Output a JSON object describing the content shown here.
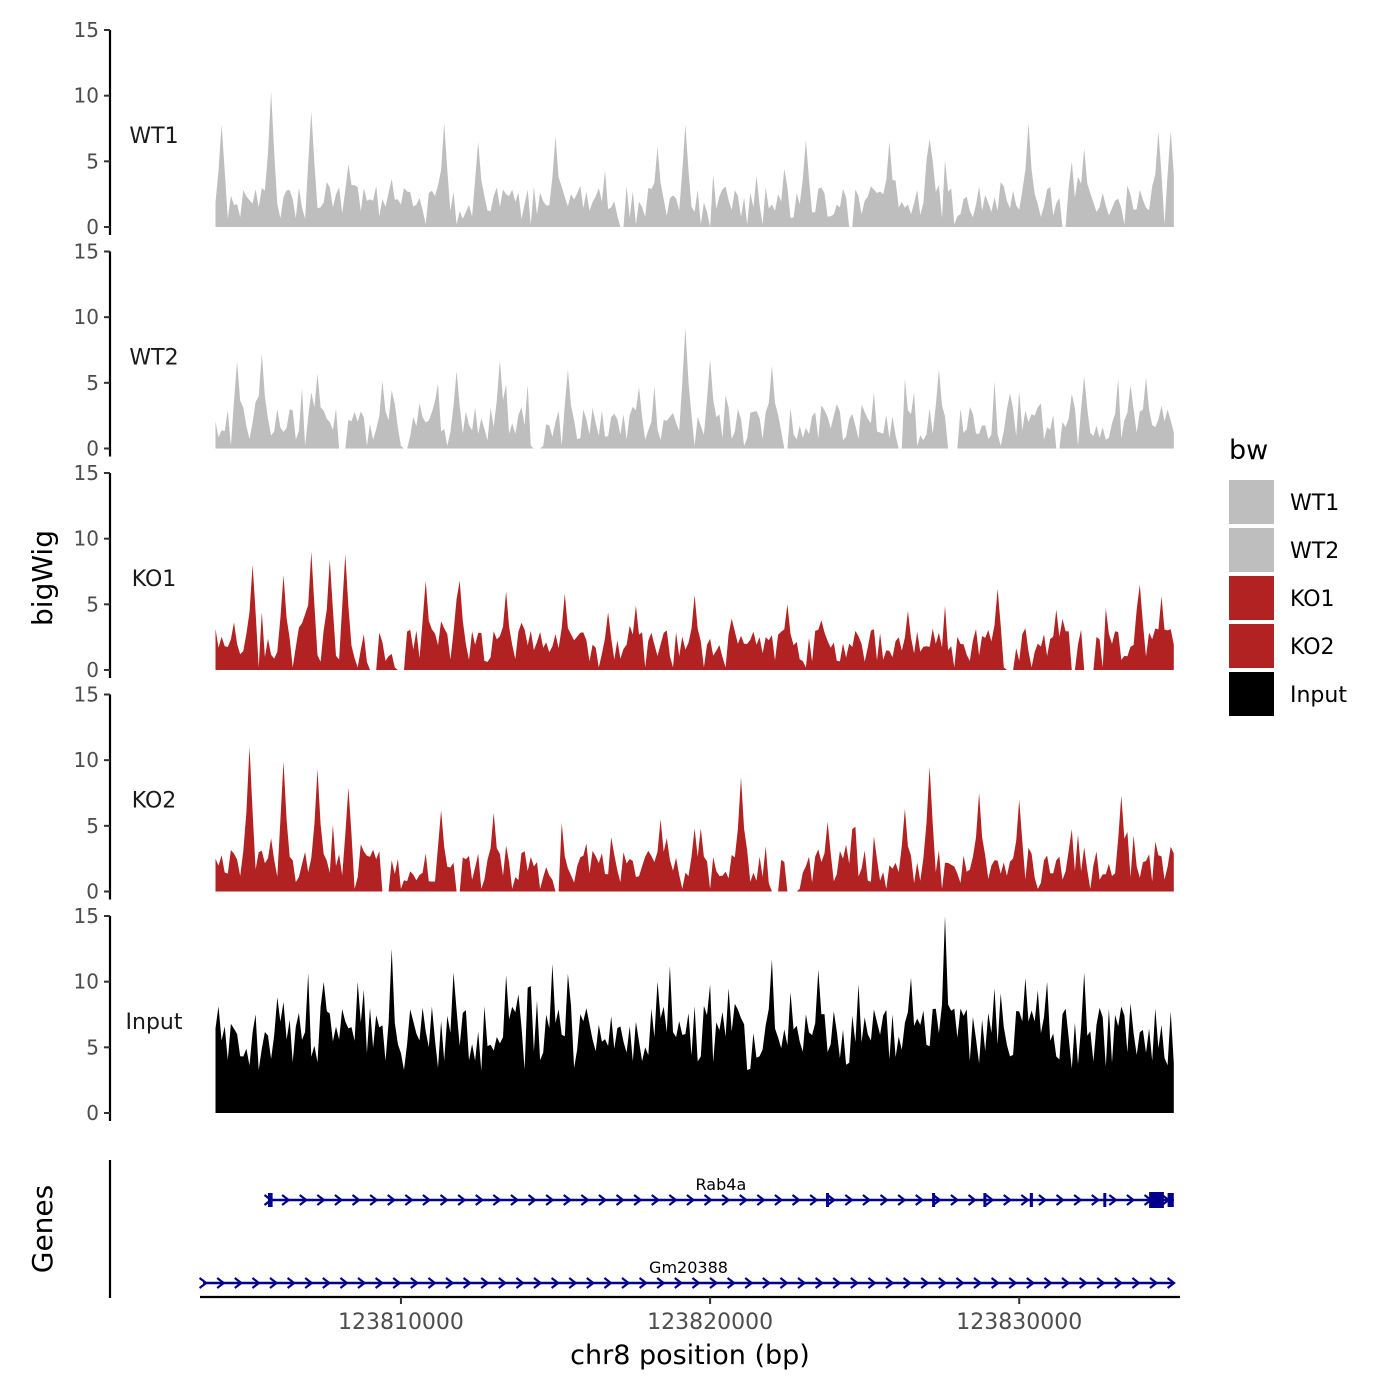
{
  "chart_data": {
    "type": "area",
    "ylabel": "bigWig",
    "genes_label": "Genes",
    "xlabel": "chr8 position (bp)",
    "xlim": [
      123803500,
      123835200
    ],
    "x_range": [
      123804000,
      123835000
    ],
    "xticks": [
      {
        "value": 123810000,
        "label": "123810000"
      },
      {
        "value": 123820000,
        "label": "123820000"
      },
      {
        "value": 123830000,
        "label": "123830000"
      }
    ],
    "ylim": [
      0,
      15
    ],
    "yticks": [
      {
        "value": 0,
        "label": "0"
      },
      {
        "value": 5,
        "label": "5"
      },
      {
        "value": 10,
        "label": "10"
      },
      {
        "value": 15,
        "label": "15"
      }
    ],
    "legend": {
      "title": "bw",
      "position": "right",
      "entries": [
        {
          "label": "WT1",
          "color": "#bebebe"
        },
        {
          "label": "WT2",
          "color": "#bebebe"
        },
        {
          "label": "KO1",
          "color": "#b22222"
        },
        {
          "label": "KO2",
          "color": "#b22222"
        },
        {
          "label": "Input",
          "color": "#000000"
        }
      ]
    },
    "series": [
      {
        "name": "WT1",
        "color": "#bebebe",
        "bin_bp": 100,
        "peaks": [
          [
            123804200,
            7.8
          ],
          [
            123805800,
            10.3
          ],
          [
            123807100,
            8.8
          ],
          [
            123811400,
            7.9
          ],
          [
            123812500,
            6.5
          ],
          [
            123815000,
            6.9
          ],
          [
            123818300,
            6.1
          ],
          [
            123819200,
            7.8
          ],
          [
            123823100,
            6.6
          ],
          [
            123825800,
            6.5
          ],
          [
            123827100,
            6.7
          ],
          [
            123830300,
            7.9
          ],
          [
            123832100,
            6.0
          ],
          [
            123834500,
            7.3
          ],
          [
            123834900,
            7.3
          ]
        ],
        "gaps": [
          [
            123817100,
            123817200
          ],
          [
            123820000,
            123820000
          ],
          [
            123824500,
            123824600
          ],
          [
            123831400,
            123831500
          ]
        ]
      },
      {
        "name": "WT2",
        "color": "#bebebe",
        "bin_bp": 100,
        "peaks": [
          [
            123804700,
            6.6
          ],
          [
            123805500,
            7.2
          ],
          [
            123807300,
            5.7
          ],
          [
            123811800,
            5.9
          ],
          [
            123813200,
            6.7
          ],
          [
            123815400,
            6.0
          ],
          [
            123819200,
            9.2
          ],
          [
            123820000,
            6.8
          ],
          [
            123822000,
            6.3
          ],
          [
            123826300,
            5.3
          ],
          [
            123827400,
            6.0
          ],
          [
            123829700,
            4.2
          ],
          [
            123832100,
            5.5
          ],
          [
            123834100,
            5.4
          ]
        ],
        "gaps": [
          [
            123808000,
            123808200
          ],
          [
            123810100,
            123810200
          ],
          [
            123814300,
            123814500
          ],
          [
            123822400,
            123822500
          ],
          [
            123826100,
            123826200
          ],
          [
            123827700,
            123828000
          ],
          [
            123831200,
            123831300
          ]
        ]
      },
      {
        "name": "KO1",
        "color": "#b22222",
        "bin_bp": 100,
        "peaks": [
          [
            123805200,
            8.0
          ],
          [
            123806200,
            7.2
          ],
          [
            123807100,
            9.0
          ],
          [
            123807700,
            8.4
          ],
          [
            123808200,
            8.8
          ],
          [
            123810800,
            6.8
          ],
          [
            123811900,
            6.8
          ],
          [
            123813400,
            6.0
          ],
          [
            123815300,
            5.8
          ],
          [
            123816700,
            4.4
          ],
          [
            123817600,
            4.9
          ],
          [
            123819500,
            5.7
          ],
          [
            123822500,
            5.0
          ],
          [
            123826400,
            4.5
          ],
          [
            123829300,
            6.2
          ],
          [
            123831200,
            4.6
          ],
          [
            123833900,
            6.5
          ],
          [
            123834600,
            5.6
          ]
        ],
        "gaps": [
          [
            123809000,
            123809200
          ],
          [
            123809900,
            123810100
          ],
          [
            123829600,
            123829800
          ],
          [
            123831700,
            123831800
          ],
          [
            123832100,
            123832400
          ]
        ]
      },
      {
        "name": "KO2",
        "color": "#b22222",
        "bin_bp": 100,
        "peaks": [
          [
            123805100,
            11.0
          ],
          [
            123806200,
            9.9
          ],
          [
            123807300,
            9.3
          ],
          [
            123808300,
            7.9
          ],
          [
            123811300,
            6.2
          ],
          [
            123813000,
            6.0
          ],
          [
            123818400,
            5.5
          ],
          [
            123819500,
            4.8
          ],
          [
            123821000,
            8.7
          ],
          [
            123823800,
            5.3
          ],
          [
            123826300,
            6.3
          ],
          [
            123827100,
            9.5
          ],
          [
            123828700,
            7.5
          ],
          [
            123830000,
            7.0
          ],
          [
            123833300,
            7.3
          ],
          [
            123834900,
            3.4
          ]
        ],
        "gaps": [
          [
            123809400,
            123809600
          ],
          [
            123811800,
            123811900
          ],
          [
            123815000,
            123815100
          ],
          [
            123822000,
            123822200
          ],
          [
            123822500,
            123822800
          ]
        ]
      },
      {
        "name": "Input",
        "color": "#000000",
        "bin_bp": 100,
        "peaks": [
          [
            123804500,
            6.8
          ],
          [
            123806000,
            8.8
          ],
          [
            123807500,
            10.0
          ],
          [
            123808600,
            10.0
          ],
          [
            123809700,
            12.5
          ],
          [
            123811700,
            10.7
          ],
          [
            123813400,
            10.5
          ],
          [
            123815400,
            10.6
          ],
          [
            123818700,
            11.2
          ],
          [
            123820600,
            9.5
          ],
          [
            123822000,
            11.7
          ],
          [
            123823500,
            10.9
          ],
          [
            123824800,
            9.8
          ],
          [
            123826500,
            10.3
          ],
          [
            123827600,
            15.0
          ],
          [
            123829200,
            9.5
          ],
          [
            123830900,
            10.0
          ],
          [
            123832100,
            10.7
          ],
          [
            123834900,
            5.3
          ]
        ],
        "gaps": []
      }
    ],
    "genes": [
      {
        "name": "Rab4a",
        "strand": "+",
        "start": 123805700,
        "end": 123835000,
        "color": "#00008b",
        "exons": [
          [
            123805700,
            123805850
          ],
          [
            123823750,
            123823780
          ],
          [
            123827180,
            123827230
          ],
          [
            123828840,
            123828870
          ],
          [
            123830340,
            123830440
          ],
          [
            123832720,
            123832760
          ],
          [
            123834200,
            123834680
          ],
          [
            123834800,
            123835000
          ]
        ]
      },
      {
        "name": "Gm20388",
        "strand": "+",
        "start": 123803600,
        "end": 123835000,
        "color": "#00008b",
        "exons": []
      }
    ]
  }
}
